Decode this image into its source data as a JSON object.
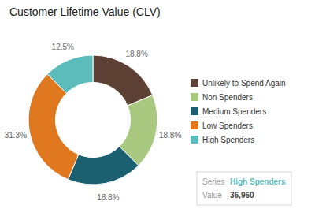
{
  "chart_data": {
    "type": "donut",
    "title": "Customer Lifetime Value (CLV)",
    "categories": [
      "Unlikely to Spend Again",
      "Non Spenders",
      "Medium Spenders",
      "Low Spenders",
      "High Spenders"
    ],
    "values": [
      18.8,
      18.8,
      18.8,
      31.3,
      12.5
    ],
    "value_labels": [
      "18.8%",
      "18.8%",
      "18.8%",
      "31.3%",
      "12.5%"
    ],
    "colors": [
      "#5c4033",
      "#a8c97f",
      "#1a6070",
      "#e07820",
      "#5bbcbb"
    ],
    "data_labels": true,
    "legend": "right",
    "annotations": [
      "Series",
      "High Spenders",
      "Value",
      "36,960"
    ]
  }
}
